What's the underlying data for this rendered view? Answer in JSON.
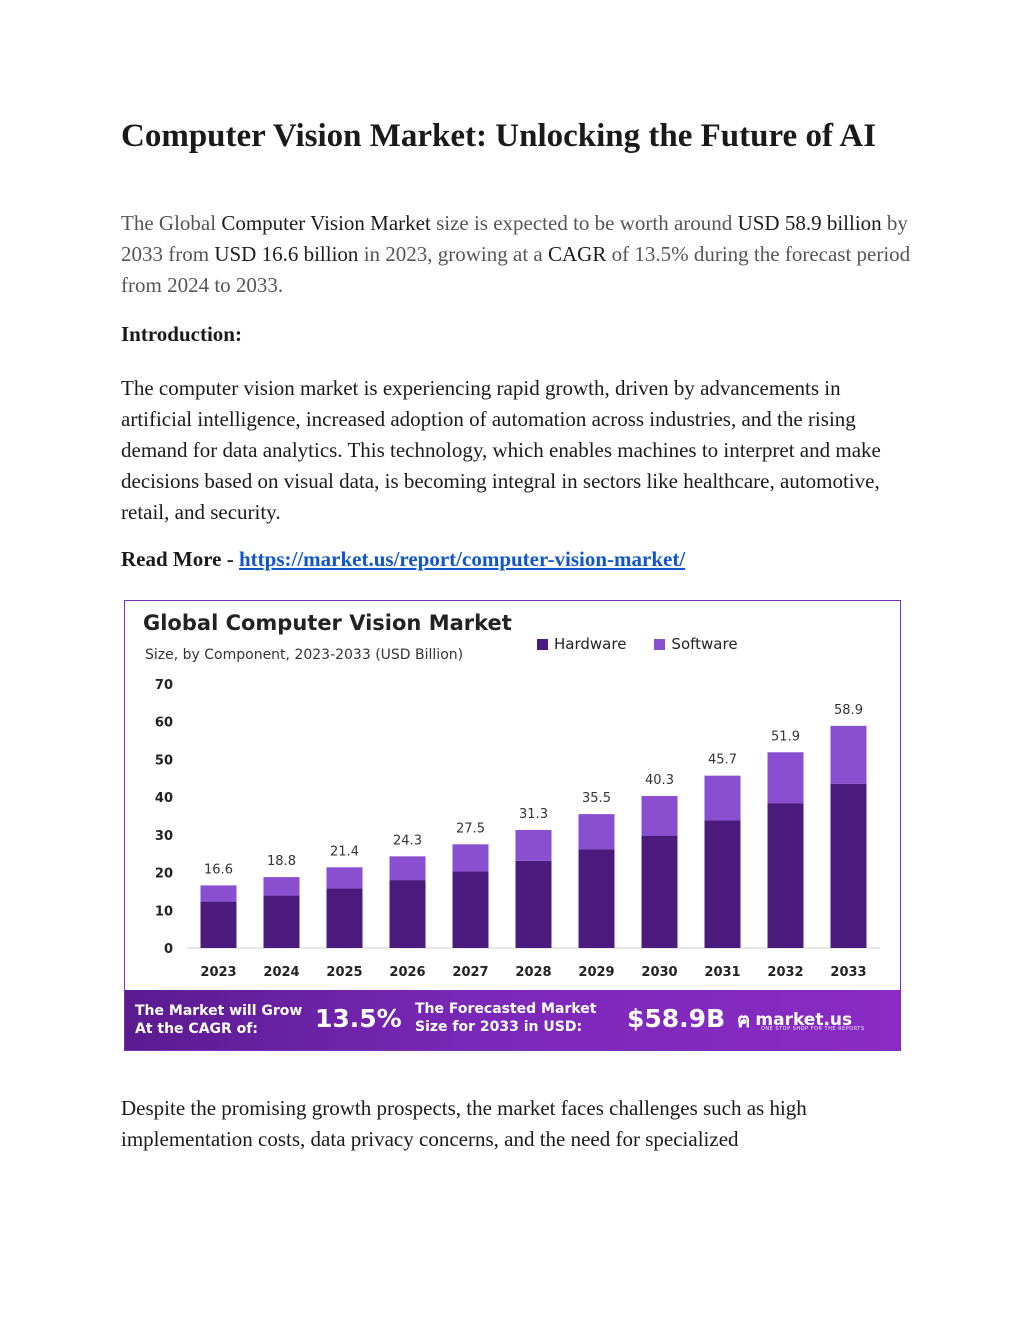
{
  "title": "Computer Vision Market: Unlocking the Future of AI",
  "lead": {
    "p1": "The Global ",
    "e1": "Computer Vision Market",
    "p2": " size is expected to be worth around ",
    "e2": "USD 58.9 billion",
    "p3": " by 2033 from ",
    "e3": "USD 16.6 billion",
    "p4": " in 2023, growing at a ",
    "e4": "CAGR",
    "p5": " of 13.5% during the forecast period from 2024 to 2033."
  },
  "intro_heading": "Introduction:",
  "intro_body": "The computer vision market is experiencing rapid growth, driven by advancements in artificial intelligence, increased adoption of automation across industries, and the rising demand for data analytics. This technology, which enables machines to interpret and make decisions based on visual data, is becoming integral in sectors like healthcare, automotive, retail, and security.",
  "read_more": {
    "label": "Read More - ",
    "link": "https://market.us/report/computer-vision-market/"
  },
  "figure": {
    "title": "Global Computer Vision Market",
    "subtitle": "Size, by Component, 2023-2033 (USD Billion)",
    "legend": {
      "hardware": "Hardware",
      "software": "Software"
    },
    "banner": {
      "cagr_label_1": "The Market will Grow",
      "cagr_label_2": "At the CAGR of:",
      "cagr_value": "13.5%",
      "forecast_label_1": "The Forecasted Market",
      "forecast_label_2": "Size for 2033 in USD:",
      "forecast_value": "$58.9B",
      "brand": "market.us",
      "tagline": "ONE STOP SHOP FOR THE REPORTS"
    }
  },
  "colors": {
    "hardware": "#4a1a7d",
    "software": "#8a4fd0",
    "accent": "#7b2fbf",
    "link": "#1155cc"
  },
  "chart_data": {
    "type": "bar",
    "title": "Global Computer Vision Market",
    "subtitle": "Size, by Component, 2023-2033 (USD Billion)",
    "categories": [
      "2023",
      "2024",
      "2025",
      "2026",
      "2027",
      "2028",
      "2029",
      "2030",
      "2031",
      "2032",
      "2033"
    ],
    "series": [
      {
        "name": "Hardware",
        "values": [
          12.3,
          13.9,
          15.8,
          18.0,
          20.3,
          23.1,
          26.2,
          29.8,
          33.8,
          38.4,
          43.5
        ]
      },
      {
        "name": "Software",
        "values": [
          4.3,
          4.9,
          5.6,
          6.3,
          7.2,
          8.2,
          9.3,
          10.5,
          11.9,
          13.5,
          15.4
        ]
      }
    ],
    "totals": [
      "16.6",
      "18.8",
      "21.4",
      "24.3",
      "27.5",
      "31.3",
      "35.5",
      "40.3",
      "45.7",
      "51.9",
      "58.9"
    ],
    "yticks": [
      0,
      10,
      20,
      30,
      40,
      50,
      60,
      70
    ],
    "ylim": [
      0,
      70
    ],
    "stacked": true,
    "legend": "top-right",
    "grid": false
  },
  "closing_body": "Despite the promising growth prospects, the market faces challenges such as high implementation costs, data privacy concerns, and the need for specialized"
}
